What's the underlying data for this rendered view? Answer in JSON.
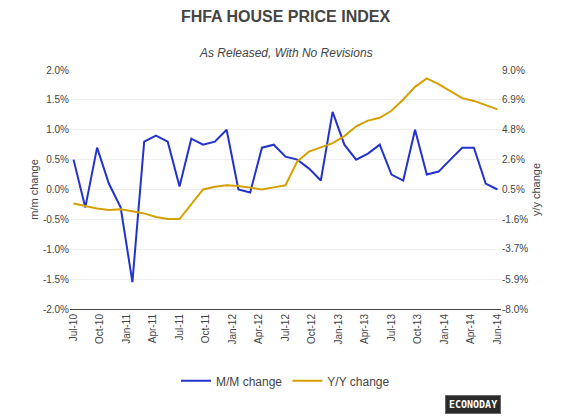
{
  "chart_data": {
    "type": "line",
    "title": "FHFA HOUSE PRICE INDEX",
    "subtitle": "As Released, With No Revisions",
    "x": [
      0,
      1,
      2,
      3,
      4,
      5,
      6,
      7,
      8,
      9,
      10,
      11,
      12,
      13,
      14,
      15,
      16,
      17,
      18,
      19,
      20,
      21,
      22,
      23,
      24,
      25,
      26,
      27,
      28,
      29,
      30,
      31,
      32,
      33,
      34,
      35,
      36
    ],
    "xlim": [
      -0.3,
      36.3
    ],
    "xticks": [
      {
        "value": 0,
        "label": "Jul-10"
      },
      {
        "value": 2.25,
        "label": "Oct-10"
      },
      {
        "value": 4.5,
        "label": "Jan-11"
      },
      {
        "value": 6.75,
        "label": "Apr-11"
      },
      {
        "value": 9,
        "label": "Jul-11"
      },
      {
        "value": 11.25,
        "label": "Oct-11"
      },
      {
        "value": 13.5,
        "label": "Jan-12"
      },
      {
        "value": 15.75,
        "label": "Apr-12"
      },
      {
        "value": 18,
        "label": "Jul-12"
      },
      {
        "value": 20.25,
        "label": "Oct-12"
      },
      {
        "value": 22.5,
        "label": "Jan-13"
      },
      {
        "value": 24.75,
        "label": "Apr-13"
      },
      {
        "value": 27,
        "label": "Jul-13"
      },
      {
        "value": 29.25,
        "label": "Oct-13"
      },
      {
        "value": 31.5,
        "label": "Jan-14"
      },
      {
        "value": 33.75,
        "label": "Apr-14"
      },
      {
        "value": 36,
        "label": "Jun-14"
      }
    ],
    "ylabel": "m/m change",
    "y2label": "y/y change",
    "ylim": [
      -2.0,
      2.0
    ],
    "yticks": [
      {
        "value": -2.0,
        "label": "-2.0%"
      },
      {
        "value": -1.5,
        "label": "-1.5%"
      },
      {
        "value": -1.0,
        "label": "-1.0%"
      },
      {
        "value": -0.5,
        "label": "-0.5%"
      },
      {
        "value": 0.0,
        "label": "0.0%"
      },
      {
        "value": 0.5,
        "label": "0.5%"
      },
      {
        "value": 1.0,
        "label": "1.0%"
      },
      {
        "value": 1.5,
        "label": "1.5%"
      },
      {
        "value": 2.0,
        "label": "2.0%"
      }
    ],
    "y2lim": [
      -8.0,
      9.0
    ],
    "y2ticks": [
      {
        "value": -8.0,
        "label": "-8.0%"
      },
      {
        "value": -5.9,
        "label": "-5.9%"
      },
      {
        "value": -3.7,
        "label": "-3.7%"
      },
      {
        "value": -1.6,
        "label": "-1.6%"
      },
      {
        "value": 0.5,
        "label": "0.5%"
      },
      {
        "value": 2.6,
        "label": "2.6%"
      },
      {
        "value": 4.8,
        "label": "4.8%"
      },
      {
        "value": 6.9,
        "label": "6.9%"
      },
      {
        "value": 9.0,
        "label": "9.0%"
      }
    ],
    "grid": true,
    "legend": "bottom",
    "annotations": [
      "ECONODAY"
    ],
    "series": [
      {
        "name": "M/M change",
        "color": "#2233cc",
        "values": [
          0.5,
          -0.3,
          0.7,
          0.1,
          -0.3,
          -1.55,
          0.8,
          0.9,
          0.8,
          0.05,
          0.85,
          0.75,
          0.8,
          1.0,
          0.0,
          -0.05,
          0.7,
          0.75,
          0.55,
          0.5,
          0.35,
          0.15,
          1.3,
          0.75,
          0.5,
          0.6,
          0.75,
          0.25,
          0.15,
          1.0,
          0.25,
          0.3,
          0.5,
          0.7,
          0.7,
          0.1,
          0.0
        ]
      },
      {
        "name": "Y/Y change",
        "color": "#d4a000",
        "axis": "y2",
        "values": [
          -0.5,
          -0.7,
          -0.85,
          -0.95,
          -0.9,
          -1.05,
          -1.2,
          -1.45,
          -1.6,
          -1.6,
          -0.55,
          0.5,
          0.7,
          0.8,
          0.75,
          0.6,
          0.5,
          0.65,
          0.8,
          2.5,
          3.2,
          3.5,
          3.8,
          4.3,
          5.0,
          5.4,
          5.6,
          6.1,
          6.9,
          7.8,
          8.4,
          8.0,
          7.5,
          7.0,
          6.8,
          6.5,
          6.2
        ]
      }
    ]
  }
}
